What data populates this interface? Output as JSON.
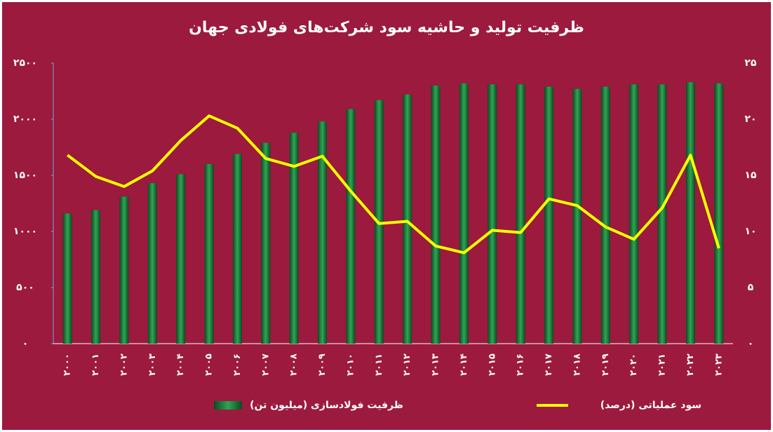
{
  "chart_data": {
    "type": "bar-line",
    "title": "ظرفیت تولید و حاشیه سود شرکت‌های فولادی جهان",
    "categories": [
      "۲۰۰۰",
      "۲۰۰۱",
      "۲۰۰۲",
      "۲۰۰۳",
      "۲۰۰۴",
      "۲۰۰۵",
      "۲۰۰۶",
      "۲۰۰۷",
      "۲۰۰۸",
      "۲۰۰۹",
      "۲۰۱۰",
      "۲۰۱۱",
      "۲۰۱۲",
      "۲۰۱۳",
      "۲۰۱۴",
      "۲۰۱۵",
      "۲۰۱۶",
      "۲۰۱۷",
      "۲۰۱۸",
      "۲۰۱۹",
      "۲۰۲۰",
      "۲۰۲۱",
      "۲۰۲۲",
      "۲۰۲۳"
    ],
    "series": [
      {
        "name": "ظرفیت فولادسازی (میلیون تن)",
        "type": "bar",
        "color": "#2fa553",
        "values": [
          1160,
          1190,
          1310,
          1430,
          1510,
          1600,
          1690,
          1790,
          1880,
          1980,
          2090,
          2170,
          2220,
          2300,
          2320,
          2310,
          2310,
          2290,
          2270,
          2290,
          2310,
          2310,
          2330,
          2320
        ]
      },
      {
        "name": "سود عملیاتی (درصد)",
        "type": "line",
        "axis": "y2",
        "color": "#ffff00",
        "values": [
          16.8,
          14.9,
          14.0,
          15.4,
          18.1,
          20.3,
          19.2,
          16.5,
          15.8,
          16.7,
          13.6,
          10.7,
          10.9,
          8.7,
          8.1,
          10.1,
          9.9,
          12.9,
          12.3,
          10.4,
          9.3,
          12.1,
          16.8,
          8.5
        ]
      }
    ],
    "ylim": [
      0,
      2500
    ],
    "yticks": [
      {
        "value": 0,
        "label": "۰"
      },
      {
        "value": 500,
        "label": "۵۰۰"
      },
      {
        "value": 1000,
        "label": "۱۰۰۰"
      },
      {
        "value": 1500,
        "label": "۱۵۰۰"
      },
      {
        "value": 2000,
        "label": "۲۰۰۰"
      },
      {
        "value": 2500,
        "label": "۲۵۰۰"
      }
    ],
    "y2lim": [
      0,
      25
    ],
    "y2ticks": [
      {
        "value": 0,
        "label": "۰"
      },
      {
        "value": 5,
        "label": "۵"
      },
      {
        "value": 10,
        "label": "۱۰"
      },
      {
        "value": 15,
        "label": "۱۵"
      },
      {
        "value": 20,
        "label": "۲۰"
      },
      {
        "value": 25,
        "label": "۲۵"
      }
    ]
  }
}
